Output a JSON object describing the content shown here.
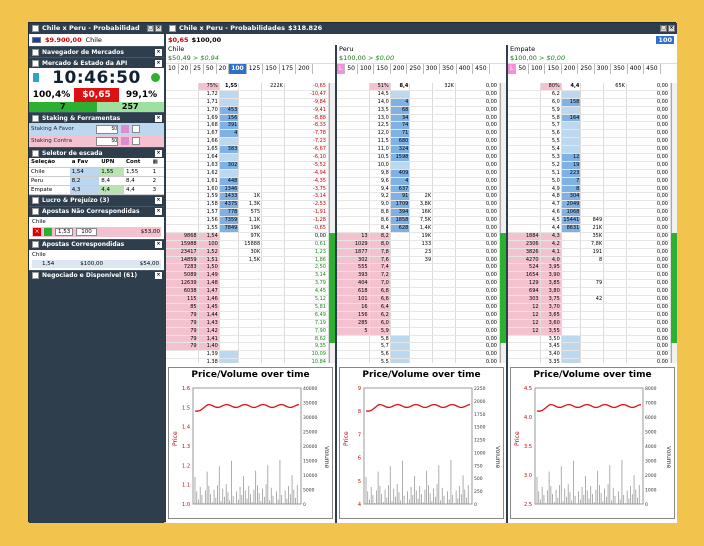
{
  "left_panel": {
    "title": "Chile x Peru - Probabilidad",
    "balance": "$9.900,00",
    "balance_team": "Chile",
    "sections": {
      "navegador": "Navegador de Mercados",
      "mercado": "Mercado & Estado da API",
      "staking": "Staking & Ferramentas",
      "seletor": "Seletor de escada",
      "lucro": "Lucro & Prejuízo (3)",
      "nao_corr": "Apostas Não Correspondidas",
      "corr": "Apostas Correspondidas",
      "negociado": "Negociado e Disponível (61)"
    },
    "clock": "10:46:50",
    "pct_left": "100,4%",
    "pct_mid": "$0,65",
    "pct_right": "99,1%",
    "count_left": "7",
    "count_right": "257",
    "staking_favor_label": "Staking A Favor",
    "staking_favor_value": "50",
    "staking_contra_label": "Staking Contra",
    "staking_contra_value": "50",
    "seletor_headers": [
      "Seleção",
      "a Fav",
      "UPN",
      "Cont",
      ""
    ],
    "seletor_rows": [
      [
        "Chile",
        "1,54",
        "1,55",
        "1,55",
        "1"
      ],
      [
        "Peru",
        "8,2",
        "8,4",
        "8,4",
        "2"
      ],
      [
        "Empate",
        "4,3",
        "4,4",
        "4,4",
        "3"
      ]
    ],
    "nao_corr_team": "Chile",
    "nao_corr_odd": "1,53",
    "nao_corr_stake": "100",
    "nao_corr_amount": "$53,00",
    "corr_team": "Chile",
    "corr_odd": "1,54",
    "corr_stake": "$100,00",
    "corr_amount": "$54,00"
  },
  "main": {
    "title": "Chile x Peru - Probabilidades",
    "total": "$318.826",
    "header_amount": "$0,65",
    "header_stake": "$100,00",
    "header_box": "100",
    "header_50": "50",
    "steps": [
      "10",
      "20",
      "25",
      "50",
      "20",
      "100",
      "125",
      "150",
      "175",
      "200"
    ],
    "markets": [
      {
        "name": "Chile",
        "val_a": "$50,49",
        "val_b": "> $0,94",
        "steps": [
          "50",
          "100",
          "150",
          "200",
          "250",
          "300",
          "350",
          "400",
          "450"
        ],
        "pct": "75%",
        "top_odd": "1,55",
        "top_vol": "222K",
        "top_pl": "-0,65",
        "rows": [
          [
            "",
            "1,72",
            "",
            "",
            "-10,47"
          ],
          [
            "",
            "1,71",
            "",
            "",
            "-9,84"
          ],
          [
            "",
            "1,70",
            "453",
            "",
            "-9,41"
          ],
          [
            "",
            "1,69",
            "156",
            "",
            "-8,88"
          ],
          [
            "",
            "1,68",
            "391",
            "",
            "-8,33"
          ],
          [
            "",
            "1,67",
            "4",
            "",
            "-7,78"
          ],
          [
            "",
            "1,66",
            "",
            "",
            "-7,23"
          ],
          [
            "",
            "1,65",
            "383",
            "",
            "-6,67"
          ],
          [
            "",
            "1,64",
            "",
            "",
            "-6,10"
          ],
          [
            "",
            "1,63",
            "302",
            "",
            "-5,52"
          ],
          [
            "",
            "1,62",
            "",
            "",
            "-4,94"
          ],
          [
            "",
            "1,61",
            "448",
            "",
            "-4,35"
          ],
          [
            "",
            "1,60",
            "1346",
            "",
            "-3,75"
          ],
          [
            "",
            "1,59",
            "1433",
            "1K",
            "-3,14"
          ],
          [
            "",
            "1,58",
            "4375",
            "1,3K",
            "-2,53"
          ],
          [
            "",
            "1,57",
            "778",
            "575",
            "-1,91"
          ],
          [
            "",
            "1,56",
            "7359",
            "1,1K",
            "-1,28"
          ],
          [
            "",
            "1,55",
            "7849",
            "19K",
            "-0,65"
          ],
          [
            "9868",
            "1,54",
            "",
            "97K",
            "0,00"
          ],
          [
            "15988",
            "100",
            "",
            "15888",
            "0,61"
          ],
          [
            "23417",
            "1,52",
            "",
            "30K",
            "1,23"
          ],
          [
            "14859",
            "1,51",
            "",
            "1,5K",
            "1,86"
          ],
          [
            "7283",
            "1,50",
            "",
            "",
            "2,50"
          ],
          [
            "5089",
            "1,49",
            "",
            "",
            "3,14"
          ],
          [
            "12639",
            "1,48",
            "",
            "",
            "3,79"
          ],
          [
            "6038",
            "1,47",
            "",
            "",
            "4,45"
          ],
          [
            "115",
            "1,46",
            "",
            "",
            "5,12"
          ],
          [
            "85",
            "1,45",
            "",
            "",
            "5,81"
          ],
          [
            "79",
            "1,44",
            "",
            "",
            "6,49"
          ],
          [
            "79",
            "1,43",
            "",
            "",
            "7,19"
          ],
          [
            "79",
            "1,42",
            "",
            "",
            "7,90"
          ],
          [
            "79",
            "1,41",
            "",
            "",
            "8,62"
          ],
          [
            "79",
            "1,40",
            "",
            "",
            "9,35"
          ],
          [
            "",
            "1,39",
            "",
            "",
            "10,09"
          ],
          [
            "",
            "1,38",
            "",
            "",
            "10,84"
          ],
          [
            "",
            "1,37",
            "",
            "",
            "11,60"
          ],
          [
            "",
            "1,36",
            "",
            "",
            "12,38"
          ]
        ],
        "chart_title": "Price/Volume over time",
        "y_left": [
          "1.6",
          "1.5",
          "1.4",
          "1.3",
          "1.2",
          "1.1",
          "1.0"
        ],
        "y_right": [
          "40000",
          "35000",
          "30000",
          "25000",
          "20000",
          "15000",
          "10000",
          "5000",
          "0"
        ],
        "ylabel_left": "Price",
        "ylabel_right": "Volume"
      },
      {
        "name": "Peru",
        "val_a": "$100,00",
        "val_b": "> $0,00",
        "steps": [
          "50",
          "100",
          "150",
          "200",
          "250",
          "300",
          "350",
          "400",
          "450"
        ],
        "pct": "51%",
        "top_odd": "8,4",
        "top_vol": "32K",
        "top_pl": "0,00",
        "rows": [
          [
            "",
            "14,5",
            "",
            "",
            "0,00"
          ],
          [
            "",
            "14,0",
            "4",
            "",
            "0,00"
          ],
          [
            "",
            "13,5",
            "68",
            "",
            "0,00"
          ],
          [
            "",
            "13,0",
            "34",
            "",
            "0,00"
          ],
          [
            "",
            "12,5",
            "74",
            "",
            "0,00"
          ],
          [
            "",
            "12,0",
            "71",
            "",
            "0,00"
          ],
          [
            "",
            "11,5",
            "680",
            "",
            "0,00"
          ],
          [
            "",
            "11,0",
            "324",
            "",
            "0,00"
          ],
          [
            "",
            "10,5",
            "1598",
            "",
            "0,00"
          ],
          [
            "",
            "10,0",
            "",
            "",
            "0,00"
          ],
          [
            "",
            "9,8",
            "409",
            "",
            "0,00"
          ],
          [
            "",
            "9,6",
            "4",
            "",
            "0,00"
          ],
          [
            "",
            "9,4",
            "637",
            "",
            "0,00"
          ],
          [
            "",
            "9,2",
            "91",
            "2K",
            "0,00"
          ],
          [
            "",
            "9,0",
            "1709",
            "3,8K",
            "0,00"
          ],
          [
            "",
            "8,8",
            "394",
            "16K",
            "0,00"
          ],
          [
            "",
            "8,6",
            "1858",
            "7,5K",
            "0,00"
          ],
          [
            "",
            "8,4",
            "628",
            "1,4K",
            "0,00"
          ],
          [
            "13",
            "8,2",
            "",
            "19K",
            "0,00"
          ],
          [
            "1029",
            "8,0",
            "",
            "133",
            "0,00"
          ],
          [
            "1877",
            "7,8",
            "",
            "23",
            "0,00"
          ],
          [
            "302",
            "7,6",
            "",
            "39",
            "0,00"
          ],
          [
            "555",
            "7,4",
            "",
            "",
            "0,00"
          ],
          [
            "393",
            "7,2",
            "",
            "",
            "0,00"
          ],
          [
            "404",
            "7,0",
            "",
            "",
            "0,00"
          ],
          [
            "618",
            "6,8",
            "",
            "",
            "0,00"
          ],
          [
            "101",
            "6,6",
            "",
            "",
            "0,00"
          ],
          [
            "16",
            "6,4",
            "",
            "",
            "0,00"
          ],
          [
            "156",
            "6,2",
            "",
            "",
            "0,00"
          ],
          [
            "285",
            "6,0",
            "",
            "",
            "0,00"
          ],
          [
            "5",
            "5,9",
            "",
            "",
            "0,00"
          ],
          [
            "",
            "5,8",
            "",
            "",
            "0,00"
          ],
          [
            "",
            "5,7",
            "",
            "",
            "0,00"
          ],
          [
            "",
            "5,6",
            "",
            "",
            "0,00"
          ],
          [
            "",
            "5,5",
            "",
            "",
            "0,00"
          ],
          [
            "",
            "5,4",
            "",
            "",
            "0,00"
          ],
          [
            "",
            "5,3",
            "",
            "",
            "0,00"
          ]
        ],
        "chart_title": "Price/Volume over time",
        "y_left": [
          "9",
          "8",
          "7",
          "6",
          "5",
          "4"
        ],
        "y_right": [
          "2250",
          "2000",
          "1750",
          "1500",
          "1250",
          "1000",
          "750",
          "500",
          "250",
          "0"
        ],
        "ylabel_left": "Price",
        "ylabel_right": "Volume"
      },
      {
        "name": "Empate",
        "val_a": "$100,00",
        "val_b": "> $0,00",
        "steps": [
          "50",
          "100",
          "150",
          "200",
          "250",
          "300",
          "350",
          "400",
          "450"
        ],
        "pct": "80%",
        "top_odd": "4,4",
        "top_vol": "65K",
        "top_pl": "0,00",
        "rows": [
          [
            "",
            "6,2",
            "",
            "",
            "0,00"
          ],
          [
            "",
            "6,0",
            "158",
            "",
            "0,00"
          ],
          [
            "",
            "5,9",
            "",
            "",
            "0,00"
          ],
          [
            "",
            "5,8",
            "164",
            "",
            "0,00"
          ],
          [
            "",
            "5,7",
            "",
            "",
            "0,00"
          ],
          [
            "",
            "5,6",
            "",
            "",
            "0,00"
          ],
          [
            "",
            "5,5",
            "",
            "",
            "0,00"
          ],
          [
            "",
            "5,4",
            "",
            "",
            "0,00"
          ],
          [
            "",
            "5,3",
            "12",
            "",
            "0,00"
          ],
          [
            "",
            "5,2",
            "19",
            "",
            "0,00"
          ],
          [
            "",
            "5,1",
            "223",
            "",
            "0,00"
          ],
          [
            "",
            "5,0",
            "7",
            "",
            "0,00"
          ],
          [
            "",
            "4,9",
            "8",
            "",
            "0,00"
          ],
          [
            "",
            "4,8",
            "304",
            "",
            "0,00"
          ],
          [
            "",
            "4,7",
            "2049",
            "",
            "0,00"
          ],
          [
            "",
            "4,6",
            "1068",
            "",
            "0,00"
          ],
          [
            "",
            "4,5",
            "15441",
            "849",
            "0,00"
          ],
          [
            "",
            "4,4",
            "8631",
            "21K",
            "0,00"
          ],
          [
            "1884",
            "4,3",
            "",
            "35K",
            "0,00"
          ],
          [
            "2306",
            "4,2",
            "",
            "7,8K",
            "0,00"
          ],
          [
            "3826",
            "4,1",
            "",
            "191",
            "0,00"
          ],
          [
            "4270",
            "4,0",
            "",
            "8",
            "0,00"
          ],
          [
            "524",
            "3,95",
            "",
            "",
            "0,00"
          ],
          [
            "1654",
            "3,90",
            "",
            "",
            "0,00"
          ],
          [
            "129",
            "3,85",
            "",
            "79",
            "0,00"
          ],
          [
            "694",
            "3,80",
            "",
            "",
            "0,00"
          ],
          [
            "303",
            "3,75",
            "",
            "42",
            "0,00"
          ],
          [
            "12",
            "3,70",
            "",
            "",
            "0,00"
          ],
          [
            "12",
            "3,65",
            "",
            "",
            "0,00"
          ],
          [
            "12",
            "3,60",
            "",
            "",
            "0,00"
          ],
          [
            "12",
            "3,55",
            "",
            "",
            "0,00"
          ],
          [
            "",
            "3,50",
            "",
            "",
            "0,00"
          ],
          [
            "",
            "3,45",
            "",
            "",
            "0,00"
          ],
          [
            "",
            "3,40",
            "",
            "",
            "0,00"
          ],
          [
            "",
            "3,35",
            "",
            "",
            "0,00"
          ],
          [
            "",
            "3,30",
            "",
            "",
            "0,00"
          ],
          [
            "",
            "3,25",
            "",
            "",
            "0,00"
          ]
        ],
        "chart_title": "Price/Volume over time",
        "y_left": [
          "4.5",
          "4.0",
          "3.5",
          "3.0",
          "2.5"
        ],
        "y_right": [
          "8000",
          "7000",
          "6000",
          "5000",
          "4000",
          "3000",
          "2000",
          "1000",
          "0"
        ],
        "ylabel_left": "Price",
        "ylabel_right": "Volume"
      }
    ]
  },
  "colors": {
    "accent": "#2f6fcf",
    "red": "#dd1111",
    "green": "#2bb032",
    "panel": "#2f3e4c",
    "bg": "#f2c44e"
  }
}
